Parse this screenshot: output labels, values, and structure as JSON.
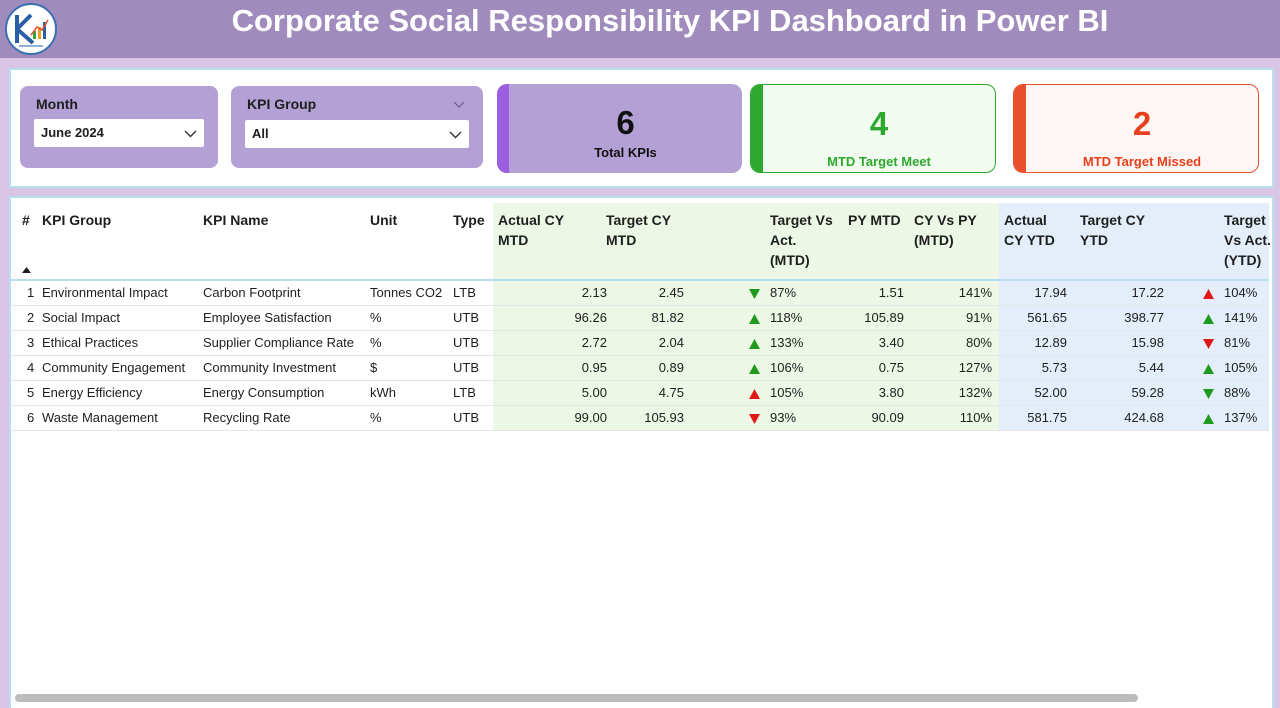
{
  "header": {
    "title": "Corporate Social Responsibility KPI Dashboard in Power BI",
    "logo_icon": "company-logo-icon"
  },
  "filters": {
    "month": {
      "label": "Month",
      "value": "June 2024"
    },
    "kpi_group": {
      "label": "KPI Group",
      "value": "All"
    }
  },
  "cards": {
    "total": {
      "value": "6",
      "label": "Total KPIs",
      "color": "#9c5fe0"
    },
    "meet": {
      "value": "4",
      "label": "MTD Target Meet",
      "color": "#2ea82e"
    },
    "missed": {
      "value": "2",
      "label": "MTD Target Missed",
      "color": "#e84f2c"
    }
  },
  "table": {
    "headers": {
      "num": "#",
      "kpi_group": "KPI Group",
      "kpi_name": "KPI Name",
      "unit": "Unit",
      "type": "Type",
      "actual_mtd_1": "Actual CY",
      "actual_mtd_2": "MTD",
      "target_mtd_1": "Target CY",
      "target_mtd_2": "MTD",
      "tva_mtd_1": "Target Vs",
      "tva_mtd_2": "Act.",
      "tva_mtd_3": "(MTD)",
      "py_mtd": "PY MTD",
      "cvp_mtd_1": "CY Vs PY",
      "cvp_mtd_2": "(MTD)",
      "actual_ytd_1": "Actual",
      "actual_ytd_2": "CY YTD",
      "target_ytd_1": "Target CY",
      "target_ytd_2": "YTD",
      "tva_ytd_1": "Target",
      "tva_ytd_2": "Vs Act.",
      "tva_ytd_3": "(YTD)"
    },
    "status_colors": {
      "up": "#1f9a1f",
      "down": "#e01818"
    },
    "rows": [
      {
        "num": "1",
        "kpi_group": "Environmental Impact",
        "kpi_name": "Carbon Footprint",
        "unit": "Tonnes CO2",
        "type": "LTB",
        "actual_mtd": "2.13",
        "target_mtd": "2.45",
        "mtd_icon": "down",
        "tva_mtd": "87%",
        "py_mtd": "1.51",
        "cvp_mtd": "141%",
        "actual_ytd": "17.94",
        "target_ytd": "17.22",
        "ytd_icon": "up-red",
        "tva_ytd": "104%"
      },
      {
        "num": "2",
        "kpi_group": "Social Impact",
        "kpi_name": "Employee Satisfaction",
        "unit": "%",
        "type": "UTB",
        "actual_mtd": "96.26",
        "target_mtd": "81.82",
        "mtd_icon": "up",
        "tva_mtd": "118%",
        "py_mtd": "105.89",
        "cvp_mtd": "91%",
        "actual_ytd": "561.65",
        "target_ytd": "398.77",
        "ytd_icon": "up",
        "tva_ytd": "141%"
      },
      {
        "num": "3",
        "kpi_group": "Ethical Practices",
        "kpi_name": "Supplier Compliance Rate",
        "unit": "%",
        "type": "UTB",
        "actual_mtd": "2.72",
        "target_mtd": "2.04",
        "mtd_icon": "up",
        "tva_mtd": "133%",
        "py_mtd": "3.40",
        "cvp_mtd": "80%",
        "actual_ytd": "12.89",
        "target_ytd": "15.98",
        "ytd_icon": "down-red",
        "tva_ytd": "81%"
      },
      {
        "num": "4",
        "kpi_group": "Community Engagement",
        "kpi_name": "Community Investment",
        "unit": "$",
        "type": "UTB",
        "actual_mtd": "0.95",
        "target_mtd": "0.89",
        "mtd_icon": "up",
        "tva_mtd": "106%",
        "py_mtd": "0.75",
        "cvp_mtd": "127%",
        "actual_ytd": "5.73",
        "target_ytd": "5.44",
        "ytd_icon": "up",
        "tva_ytd": "105%"
      },
      {
        "num": "5",
        "kpi_group": "Energy Efficiency",
        "kpi_name": "Energy Consumption",
        "unit": "kWh",
        "type": "LTB",
        "actual_mtd": "5.00",
        "target_mtd": "4.75",
        "mtd_icon": "up-red",
        "tva_mtd": "105%",
        "py_mtd": "3.80",
        "cvp_mtd": "132%",
        "actual_ytd": "52.00",
        "target_ytd": "59.28",
        "ytd_icon": "down",
        "tva_ytd": "88%"
      },
      {
        "num": "6",
        "kpi_group": "Waste Management",
        "kpi_name": "Recycling Rate",
        "unit": "%",
        "type": "UTB",
        "actual_mtd": "99.00",
        "target_mtd": "105.93",
        "mtd_icon": "down-red",
        "tva_mtd": "93%",
        "py_mtd": "90.09",
        "cvp_mtd": "110%",
        "actual_ytd": "581.75",
        "target_ytd": "424.68",
        "ytd_icon": "up",
        "tva_ytd": "137%"
      }
    ]
  }
}
